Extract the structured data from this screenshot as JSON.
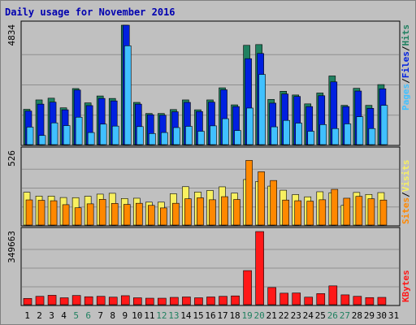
{
  "title": "Daily usage for November 2016",
  "colors": {
    "hits": "#208060",
    "files": "#0020e0",
    "pages": "#40c0ff",
    "visits": "#f8f060",
    "sites": "#ff8800",
    "kbytes": "#ff1818",
    "weekend": "#208060",
    "weekday": "#000000",
    "title": "#0000b0",
    "panel_bg": "#c0c0c0"
  },
  "legends": {
    "top": [
      "Pages",
      "/",
      "Files",
      "/",
      "Hits"
    ],
    "middle": [
      "Sites",
      "/",
      "Visits"
    ],
    "bottom": [
      "KBytes"
    ]
  },
  "chart_data": {
    "type": "bar",
    "title": "Daily usage for November 2016",
    "x": [
      1,
      2,
      3,
      4,
      5,
      6,
      7,
      8,
      9,
      10,
      11,
      12,
      13,
      14,
      15,
      16,
      17,
      18,
      19,
      20,
      21,
      22,
      23,
      24,
      25,
      26,
      27,
      28,
      29,
      30,
      31
    ],
    "weekend_days": [
      5,
      6,
      12,
      13,
      19,
      20,
      26,
      27
    ],
    "panels": [
      {
        "id": "top",
        "y_max_label": "4834",
        "ymax": 4834,
        "series": [
          {
            "name": "Hits",
            "color": "#208060",
            "values": [
              1430,
              1810,
              1880,
              1490,
              2270,
              1690,
              1970,
              1870,
              4834,
              1710,
              1260,
              1260,
              1420,
              1810,
              1410,
              1810,
              2300,
              1610,
              4020,
              4050,
              1830,
              2160,
              2010,
              1650,
              2090,
              2780,
              1590,
              2280,
              1590,
              2430,
              null
            ]
          },
          {
            "name": "Files",
            "color": "#0020e0",
            "values": [
              1360,
              1640,
              1720,
              1410,
              2210,
              1580,
              1870,
              1770,
              4834,
              1640,
              1210,
              1190,
              1330,
              1710,
              1340,
              1720,
              2220,
              1540,
              3480,
              3690,
              1680,
              2050,
              1950,
              1540,
              1980,
              2540,
              1540,
              2170,
              1470,
              2260,
              null
            ]
          },
          {
            "name": "Pages",
            "color": "#40c0ff",
            "values": [
              710,
              370,
              880,
              770,
              1110,
              490,
              830,
              750,
              4000,
              730,
              450,
              490,
              690,
              740,
              540,
              760,
              1050,
              570,
              1480,
              2840,
              720,
              980,
              870,
              540,
              810,
              650,
              840,
              1130,
              650,
              1590,
              null
            ]
          }
        ]
      },
      {
        "id": "middle",
        "y_max_label": "526",
        "ymax": 526,
        "series": [
          {
            "name": "Visits",
            "color": "#f8f060",
            "values": [
              233,
              206,
              206,
              196,
              195,
              205,
              220,
              226,
              189,
              191,
              163,
              163,
              223,
              273,
              235,
              246,
              272,
              227,
              324,
              310,
              277,
              248,
              217,
              201,
              237,
              230,
              140,
              232,
              218,
              231,
              null
            ]
          },
          {
            "name": "Sites",
            "color": "#ff8800",
            "values": [
              179,
              176,
              173,
              145,
              123,
              151,
              183,
              154,
              147,
              155,
              140,
              122,
              155,
              187,
              194,
              180,
              202,
              182,
              460,
              379,
              317,
              178,
              173,
              170,
              180,
              254,
              191,
              204,
              187,
              178,
              null
            ]
          }
        ]
      },
      {
        "id": "bottom",
        "y_max_label": "349663",
        "ymax": 349663,
        "series": [
          {
            "name": "KBytes",
            "color": "#ff1818",
            "values": [
              30000,
              40000,
              45000,
              33000,
              44000,
              38000,
              40000,
              36000,
              43000,
              33000,
              31000,
              31000,
              35000,
              37000,
              33000,
              37000,
              40000,
              42000,
              163000,
              349663,
              82000,
              55000,
              56000,
              36000,
              53000,
              90000,
              47000,
              40000,
              34000,
              35000,
              null
            ]
          }
        ]
      }
    ]
  }
}
